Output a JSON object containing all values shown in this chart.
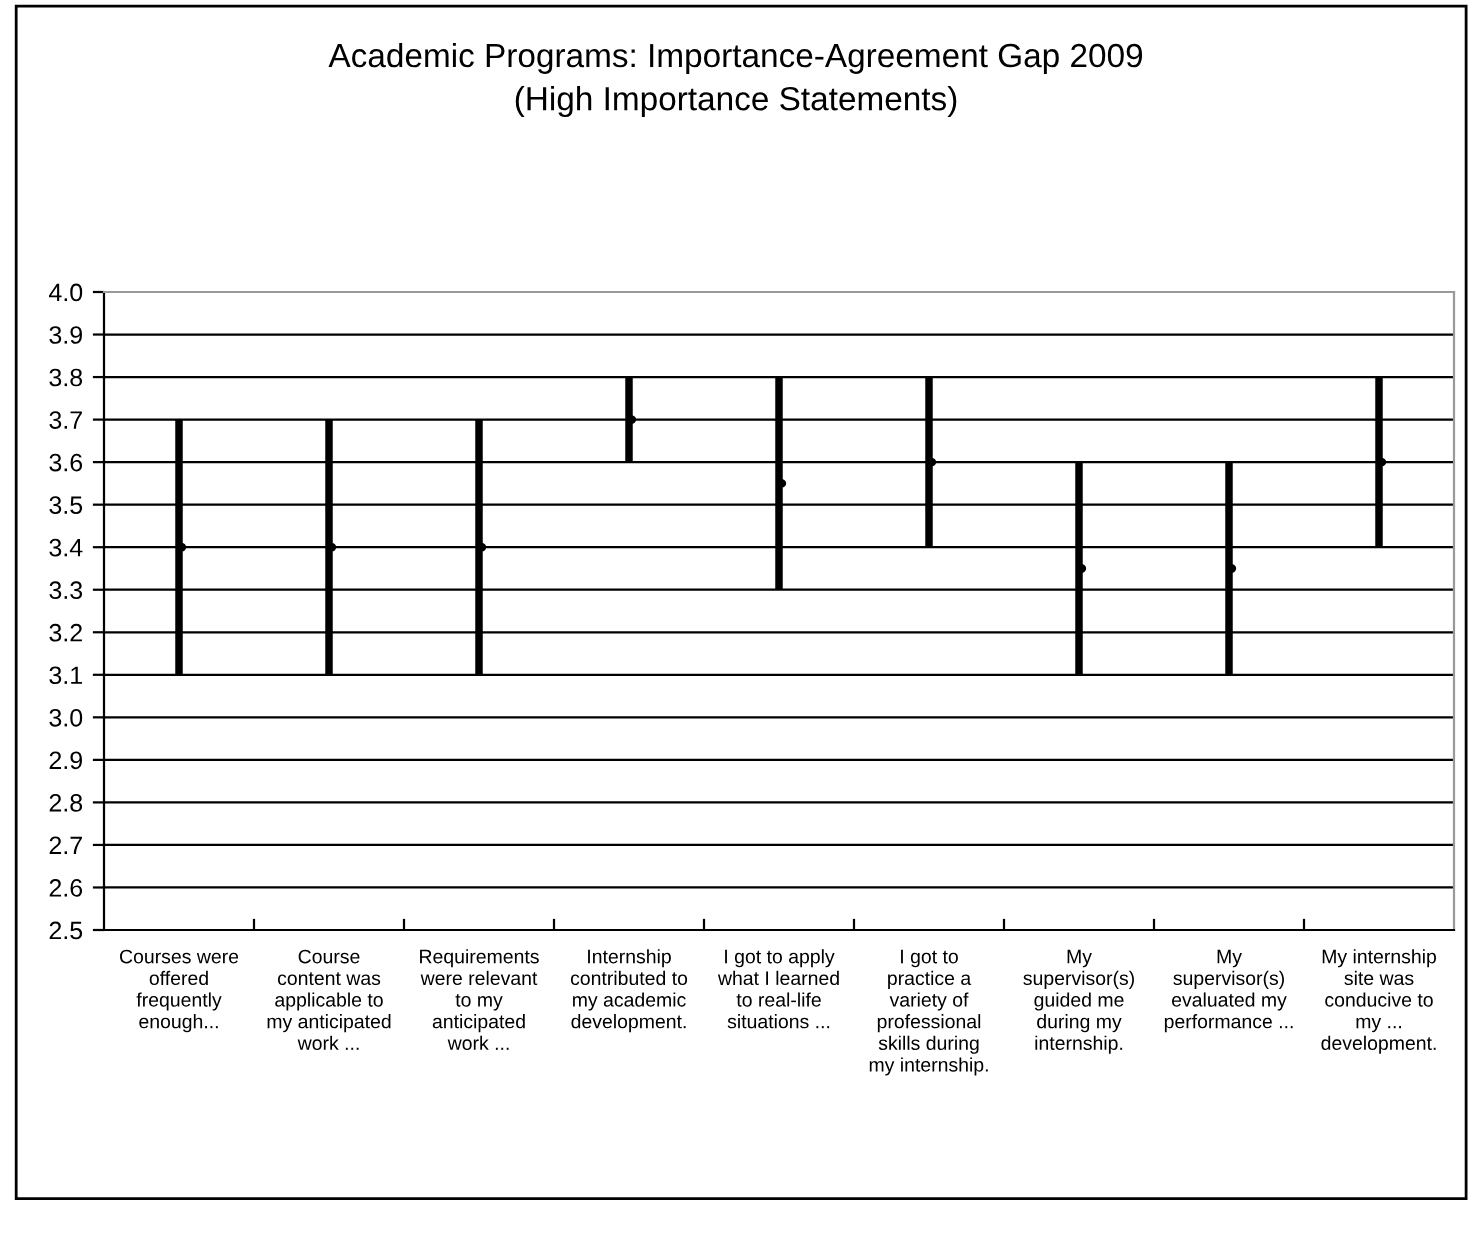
{
  "chart_data": {
    "type": "bar",
    "title": "Academic Programs: Importance-Agreement Gap 2009\n(High Importance Statements)",
    "categories": [
      "Courses were\noffered\nfrequently\nenough...",
      "Course\ncontent was\napplicable to\nmy anticipated\nwork ...",
      "Requirements\nwere relevant\nto my\nanticipated\nwork ...",
      "Internship\ncontributed to\nmy academic\ndevelopment.",
      "I got to apply\nwhat I learned\nto real-life\nsituations ...",
      "I got to\npractice a\nvariety of\nprofessional\nskills during\nmy internship.",
      "My\nsupervisor(s)\nguided me\nduring my\ninternship.",
      "My\nsupervisor(s)\nevaluated my\nperformance ...",
      "My internship\nsite was\nconducive to\nmy ...\ndevelopment."
    ],
    "series": [
      {
        "color": "#000000",
        "base": [
          3.1,
          3.1,
          3.1,
          3.6,
          3.3,
          3.4,
          3.1,
          3.1,
          3.4
        ],
        "values": [
          0.6,
          0.6,
          0.6,
          0.2,
          0.5,
          0.4,
          0.5,
          0.5,
          0.4
        ]
      },
      {
        "type": "scatter",
        "color": "#000000",
        "marker": "circle",
        "values": [
          3.4,
          3.4,
          3.4,
          3.7,
          3.55,
          3.6,
          3.35,
          3.35,
          3.6
        ]
      }
    ],
    "ylim": [
      2.5,
      4.0
    ],
    "yticks": [
      {
        "value": 2.5,
        "label": "2.5"
      },
      {
        "value": 2.6,
        "label": "2.6"
      },
      {
        "value": 2.7,
        "label": "2.7"
      },
      {
        "value": 2.8,
        "label": "2.8"
      },
      {
        "value": 2.9,
        "label": "2.9"
      },
      {
        "value": 3.0,
        "label": "3.0"
      },
      {
        "value": 3.1,
        "label": "3.1"
      },
      {
        "value": 3.2,
        "label": "3.2"
      },
      {
        "value": 3.3,
        "label": "3.3"
      },
      {
        "value": 3.4,
        "label": "3.4"
      },
      {
        "value": 3.5,
        "label": "3.5"
      },
      {
        "value": 3.6,
        "label": "3.6"
      },
      {
        "value": 3.7,
        "label": "3.7"
      },
      {
        "value": 3.8,
        "label": "3.8"
      },
      {
        "value": 3.9,
        "label": "3.9"
      },
      {
        "value": 4.0,
        "label": "4.0"
      }
    ],
    "grid": "y",
    "legend": false
  }
}
